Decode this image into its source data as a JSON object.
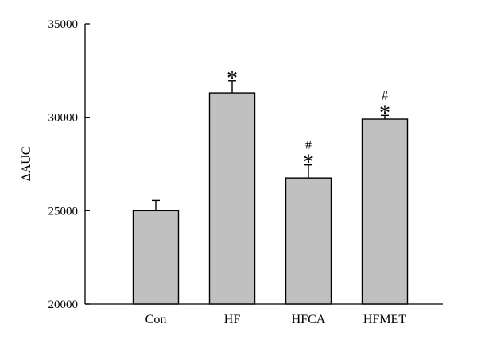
{
  "chart_data": {
    "type": "bar",
    "title": "",
    "xlabel": "",
    "ylabel": "ΔAUC",
    "ylim": [
      20000,
      35000
    ],
    "yticks": [
      20000,
      25000,
      30000,
      35000
    ],
    "categories": [
      "Con",
      "HF",
      "HFCA",
      "HFMET"
    ],
    "values": [
      25000,
      31300,
      26750,
      29900
    ],
    "errors": [
      550,
      650,
      700,
      200
    ],
    "annotations": [
      [],
      [
        "*"
      ],
      [
        "*",
        "#"
      ],
      [
        "*",
        "#"
      ]
    ],
    "grid": false,
    "legend": "none",
    "bar_color": "#c0c0c0",
    "edge_color": "#000000"
  }
}
